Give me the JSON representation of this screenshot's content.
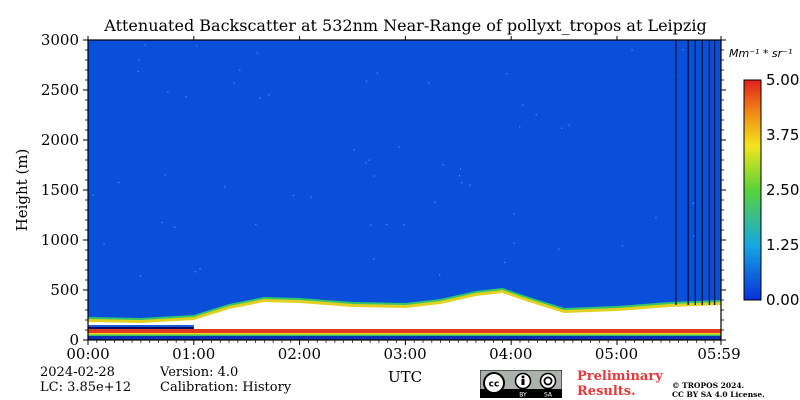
{
  "chart_data": {
    "type": "heatmap",
    "title": "Attenuated Backscatter at 532nm Near-Range of pollyxt_tropos at Leipzig",
    "xlabel": "UTC",
    "ylabel": "Height (m)",
    "x_range": [
      "00:00",
      "05:59"
    ],
    "ylim": [
      0,
      3000
    ],
    "x_ticks": [
      "00:00",
      "01:00",
      "02:00",
      "03:00",
      "04:00",
      "05:00",
      "05:59"
    ],
    "y_ticks": [
      "0",
      "500",
      "1000",
      "1500",
      "2000",
      "2500",
      "3000"
    ],
    "colorbar": {
      "unit": "Mm⁻¹ * sr⁻¹",
      "range": [
        0,
        5
      ],
      "ticks": [
        "0.00",
        "1.25",
        "2.50",
        "3.75",
        "5.00"
      ]
    },
    "aerosol_layer_top_m": [
      {
        "time": "00:00",
        "height": 200
      },
      {
        "time": "00:30",
        "height": 190
      },
      {
        "time": "01:00",
        "height": 220
      },
      {
        "time": "01:20",
        "height": 330
      },
      {
        "time": "01:40",
        "height": 400
      },
      {
        "time": "02:00",
        "height": 390
      },
      {
        "time": "02:30",
        "height": 350
      },
      {
        "time": "03:00",
        "height": 340
      },
      {
        "time": "03:20",
        "height": 380
      },
      {
        "time": "03:40",
        "height": 460
      },
      {
        "time": "03:55",
        "height": 490
      },
      {
        "time": "04:10",
        "height": 400
      },
      {
        "time": "04:30",
        "height": 290
      },
      {
        "time": "05:00",
        "height": 310
      },
      {
        "time": "05:30",
        "height": 350
      },
      {
        "time": "05:59",
        "height": 370
      }
    ]
  },
  "meta": {
    "date": "2024-02-28",
    "lc": "LC: 3.85e+12",
    "version": "Version: 4.0",
    "calibration": "Calibration: History",
    "preliminary_line1": "Preliminary",
    "preliminary_line2": "Results.",
    "copyright_line1": "© TROPOS 2024.",
    "copyright_line2": "CC BY SA 4.0 License.",
    "license_badge_text": [
      "cc",
      "BY",
      "SA"
    ]
  },
  "colors": {
    "background_blue": "#0a4fd9",
    "layer_white": "#ffffff",
    "near_surface_red": "#e23a1e",
    "near_surface_yellow": "#f5d31c",
    "near_surface_green": "#35c46a",
    "preliminary_red": "#e8383b"
  }
}
